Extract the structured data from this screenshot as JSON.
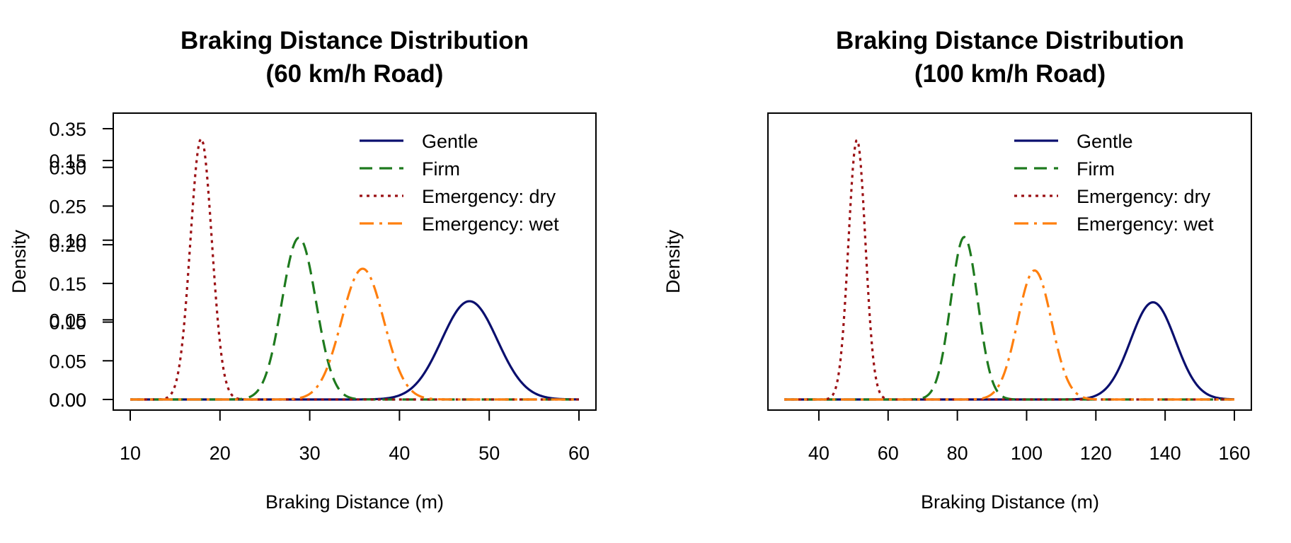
{
  "chart_data": [
    {
      "type": "line",
      "title_lines": [
        "Braking Distance Distribution",
        "(60 km/h Road)"
      ],
      "xlabel": "Braking Distance (m)",
      "ylabel": "Density",
      "xlim": [
        10,
        60
      ],
      "ylim": [
        0,
        0.35
      ],
      "x_ticks": [
        "10",
        "20",
        "30",
        "40",
        "50",
        "60"
      ],
      "y_ticks": [
        "0.00",
        "0.05",
        "0.10",
        "0.15",
        "0.20",
        "0.25",
        "0.30",
        "0.35"
      ],
      "grid": false,
      "legend_position": "top-right",
      "series": [
        {
          "name": "Gentle",
          "color": "#0a0f6e",
          "dash": "solid",
          "mean": 47.8,
          "sd": 3.1,
          "peak": 0.127
        },
        {
          "name": "Firm",
          "color": "#1e7a1e",
          "dash": "dashed",
          "mean": 28.8,
          "sd": 1.9,
          "peak": 0.209
        },
        {
          "name": "Emergency: dry",
          "color": "#9b1014",
          "dash": "dotted",
          "mean": 17.9,
          "sd": 1.2,
          "peak": 0.337
        },
        {
          "name": "Emergency: wet",
          "color": "#ff7f0e",
          "dash": "dotdash",
          "mean": 35.9,
          "sd": 2.35,
          "peak": 0.169
        }
      ]
    },
    {
      "type": "line",
      "title_lines": [
        "Braking Distance Distribution",
        "(100 km/h Road)"
      ],
      "xlabel": "Braking Distance (m)",
      "ylabel": "Density",
      "xlim": [
        30,
        160
      ],
      "ylim": [
        0,
        0.17
      ],
      "x_ticks": [
        "40",
        "60",
        "80",
        "100",
        "120",
        "140",
        "160"
      ],
      "y_ticks": [
        "0.00",
        "0.05",
        "0.10",
        "0.15"
      ],
      "grid": false,
      "legend_position": "top-right",
      "series": [
        {
          "name": "Gentle",
          "color": "#0a0f6e",
          "dash": "solid",
          "mean": 136.5,
          "sd": 6.5,
          "peak": 0.061
        },
        {
          "name": "Firm",
          "color": "#1e7a1e",
          "dash": "dashed",
          "mean": 82.0,
          "sd": 3.9,
          "peak": 0.102
        },
        {
          "name": "Emergency: dry",
          "color": "#9b1014",
          "dash": "dotted",
          "mean": 51.0,
          "sd": 2.45,
          "peak": 0.163
        },
        {
          "name": "Emergency: wet",
          "color": "#ff7f0e",
          "dash": "dotdash",
          "mean": 102.3,
          "sd": 4.9,
          "peak": 0.081
        }
      ]
    }
  ]
}
